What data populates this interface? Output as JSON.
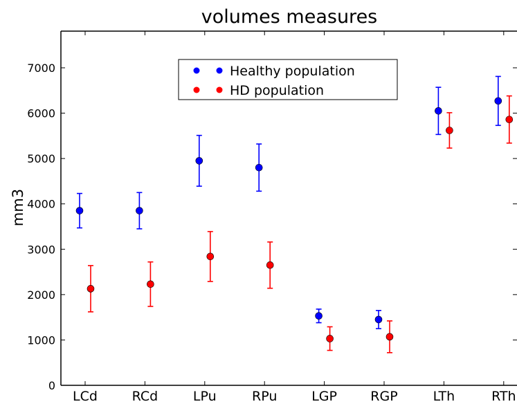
{
  "chart_data": {
    "type": "scatter",
    "title": "volumes measures",
    "ylabel": "mm3",
    "xlabel": "",
    "ylim": [
      0,
      7800
    ],
    "yticks": [
      0,
      1000,
      2000,
      3000,
      4000,
      5000,
      6000,
      7000
    ],
    "categories": [
      "LCd",
      "RCd",
      "LPu",
      "RPu",
      "LGP",
      "RGP",
      "LTh",
      "RTh"
    ],
    "grid": false,
    "legend_position": "top-center",
    "series": [
      {
        "name": "Healthy population",
        "color": "#0000ff",
        "values": [
          3850,
          3850,
          4950,
          4800,
          1530,
          1450,
          6050,
          6270
        ],
        "error": [
          380,
          400,
          560,
          520,
          150,
          200,
          520,
          540
        ]
      },
      {
        "name": "HD population",
        "color": "#ff0000",
        "values": [
          2130,
          2230,
          2840,
          2650,
          1030,
          1070,
          5620,
          5860
        ],
        "error": [
          510,
          490,
          550,
          510,
          260,
          350,
          390,
          520
        ]
      }
    ]
  }
}
